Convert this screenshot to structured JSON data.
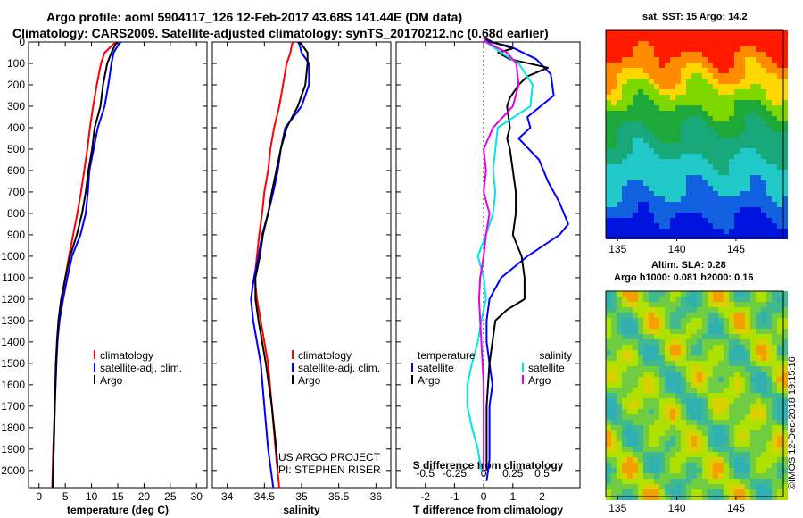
{
  "titles": {
    "line1": "Argo profile: aoml 5904117_126 12-Feb-2017 43.68S 141.44E (DM data)",
    "line2": "Climatology: CARS2009. Satellite-adjusted climatology: synTS_20170212.nc (0.68d earlier)"
  },
  "colors": {
    "climatology": "#ff0000",
    "satellite": "#0000ff",
    "argo": "#000000",
    "sat_salinity": "#00e5e5",
    "argo_salinity_diff": "#e600e6"
  },
  "credits": {
    "line1": "US ARGO PROJECT",
    "line2": "PI: STEPHEN RISER",
    "watermark": "©IMOS 12-Dec-2018 19:15:16"
  },
  "map_top": {
    "title": "sat. SST: 15 Argo: 14.2"
  },
  "map_bottom": {
    "title1": "Altim. SLA: 0.28",
    "title2": "Argo h1000: 0.081 h2000: 0.16"
  },
  "chart_data": [
    {
      "type": "line",
      "xlabel": "temperature (deg C)",
      "ylabel": "",
      "xlim": [
        -2,
        32
      ],
      "ylim": [
        2080,
        0
      ],
      "xticks": [
        "0",
        "5",
        "10",
        "15",
        "20",
        "25",
        "30"
      ],
      "yticks": [
        "0",
        "100",
        "200",
        "300",
        "400",
        "500",
        "600",
        "700",
        "800",
        "900",
        "1000",
        "1100",
        "1200",
        "1300",
        "1400",
        "1500",
        "1600",
        "1700",
        "1800",
        "1900",
        "2000"
      ],
      "legend": [
        "climatology",
        "satellite-adj. clim.",
        "Argo"
      ],
      "series": [
        {
          "name": "climatology",
          "depth": [
            0,
            10,
            50,
            100,
            200,
            300,
            400,
            500,
            600,
            700,
            800,
            900,
            1000,
            1100,
            1200,
            1300,
            1400,
            1500,
            1700,
            1900,
            2080
          ],
          "values": [
            14.5,
            14.2,
            12.5,
            11.8,
            11.0,
            10.3,
            9.7,
            9.2,
            8.6,
            8.0,
            7.3,
            6.5,
            5.7,
            5.0,
            4.4,
            3.8,
            3.5,
            3.3,
            3.0,
            2.7,
            2.5
          ]
        },
        {
          "name": "satellite-adj. clim.",
          "depth": [
            0,
            10,
            50,
            100,
            200,
            300,
            400,
            500,
            600,
            700,
            800,
            900,
            1000,
            1100,
            1200,
            1300,
            1400,
            1500,
            1700,
            1900,
            2080
          ],
          "values": [
            15.6,
            15.2,
            14.2,
            13.8,
            13.2,
            12.5,
            11.2,
            10.4,
            9.6,
            9.3,
            8.9,
            7.9,
            6.3,
            5.4,
            4.6,
            3.9,
            3.5,
            3.3,
            3.0,
            2.8,
            2.6
          ]
        },
        {
          "name": "Argo",
          "depth": [
            0,
            10,
            50,
            100,
            200,
            300,
            400,
            500,
            600,
            700,
            800,
            900,
            1000,
            1100,
            1200,
            1300,
            1400,
            1500,
            1700,
            1900,
            2080
          ],
          "values": [
            15.0,
            14.6,
            13.8,
            13.0,
            12.2,
            11.7,
            10.6,
            10.1,
            9.4,
            8.9,
            8.2,
            7.2,
            5.9,
            5.0,
            4.2,
            3.7,
            3.4,
            3.2,
            3.0,
            2.8,
            2.6
          ]
        }
      ]
    },
    {
      "type": "line",
      "xlabel": "salinity",
      "xlim": [
        33.8,
        36.2
      ],
      "ylim": [
        2080,
        0
      ],
      "xticks": [
        "34",
        "34.5",
        "35",
        "35.5",
        "36"
      ],
      "legend": [
        "climatology",
        "satellite-adj. clim.",
        "Argo"
      ],
      "series": [
        {
          "name": "climatology",
          "depth": [
            0,
            10,
            50,
            100,
            200,
            300,
            400,
            500,
            600,
            700,
            800,
            900,
            1000,
            1100,
            1200,
            1300,
            1400,
            1500,
            1700,
            1900,
            2080
          ],
          "values": [
            34.9,
            34.87,
            34.85,
            34.8,
            34.75,
            34.7,
            34.63,
            34.58,
            34.55,
            34.5,
            34.47,
            34.43,
            34.4,
            34.37,
            34.4,
            34.45,
            34.5,
            34.55,
            34.6,
            34.65,
            34.7
          ]
        },
        {
          "name": "satellite-adj. clim.",
          "depth": [
            0,
            10,
            50,
            100,
            200,
            300,
            400,
            500,
            600,
            700,
            800,
            900,
            1000,
            1100,
            1200,
            1300,
            1400,
            1500,
            1700,
            1900,
            2080
          ],
          "values": [
            34.95,
            34.97,
            35.0,
            35.1,
            35.1,
            35.0,
            34.78,
            34.72,
            34.68,
            34.62,
            34.55,
            34.47,
            34.42,
            34.36,
            34.32,
            34.35,
            34.4,
            34.45,
            34.5,
            34.55,
            34.62
          ]
        },
        {
          "name": "Argo",
          "depth": [
            0,
            10,
            50,
            100,
            200,
            300,
            400,
            500,
            600,
            700,
            800,
            900,
            1000,
            1100,
            1200,
            1300,
            1400,
            1500,
            1700,
            1900,
            1990
          ],
          "values": [
            34.95,
            35.0,
            35.08,
            35.08,
            35.05,
            34.95,
            34.8,
            34.72,
            34.66,
            34.6,
            34.55,
            34.48,
            34.44,
            34.38,
            34.38,
            34.42,
            34.47,
            34.52,
            34.6,
            34.66,
            34.68
          ]
        }
      ]
    },
    {
      "type": "line",
      "xlabel": "T difference from climatology",
      "xlabel2": "S difference from climatology",
      "xlim": [
        -3,
        3.3
      ],
      "ylim": [
        2080,
        0
      ],
      "xticks": [
        "-2",
        "-1",
        "0",
        "1",
        "2"
      ],
      "xticks_salinity": [
        "-0.5",
        "-0.25",
        "0",
        "0.25",
        "0.5"
      ],
      "legend_temperature": {
        "header": "temperature",
        "items": [
          "satellite",
          "Argo"
        ]
      },
      "legend_salinity": {
        "header": "salinity",
        "items": [
          "satellite",
          "Argo"
        ]
      },
      "series": [
        {
          "name": "satellite",
          "depth": [
            -20,
            0,
            20,
            80,
            150,
            250,
            350,
            400,
            450,
            550,
            650,
            750,
            850,
            900,
            1000,
            1100,
            1200,
            1300,
            1400,
            1500,
            1600,
            1700,
            1800,
            1950,
            2050
          ],
          "values": [
            0,
            0.2,
            0.9,
            1.8,
            2.3,
            2.4,
            1.5,
            1.6,
            1.2,
            1.9,
            2.2,
            2.6,
            2.9,
            2.6,
            1.5,
            0.6,
            0.2,
            0.1,
            0.1,
            0.2,
            0.3,
            0.2,
            0.2,
            0.2,
            0.1
          ]
        },
        {
          "name": "Argo",
          "depth": [
            -20,
            0,
            30,
            50,
            80,
            120,
            160,
            200,
            260,
            300,
            400,
            450,
            500,
            600,
            700,
            800,
            900,
            1000,
            1100,
            1200,
            1250,
            1300,
            1400,
            1500,
            1700,
            1900,
            2000
          ],
          "values": [
            0,
            0.3,
            1.0,
            0.5,
            0.9,
            2.2,
            1.5,
            1.2,
            0.9,
            0.8,
            0.9,
            0.8,
            0.9,
            1.0,
            1.1,
            1.1,
            1.0,
            1.3,
            1.4,
            1.4,
            0.8,
            0.4,
            0.3,
            0.2,
            0.1,
            0.1,
            0.1
          ]
        },
        {
          "name": "salinity satellite",
          "depth": [
            -20,
            0,
            50,
            100,
            200,
            300,
            400,
            500,
            600,
            700,
            800,
            900,
            1000,
            1100,
            1200,
            1300,
            1400,
            1500,
            1600,
            1700,
            1800,
            1900,
            2000
          ],
          "values": [
            0,
            0.02,
            0.15,
            0.3,
            0.42,
            0.4,
            0.12,
            0.1,
            0.08,
            0.1,
            0.08,
            0.02,
            -0.05,
            0.0,
            0.02,
            -0.02,
            -0.05,
            -0.1,
            -0.14,
            -0.14,
            -0.1,
            -0.05,
            -0.02
          ]
        },
        {
          "name": "Argo",
          "depth": [
            -20,
            0,
            50,
            100,
            200,
            300,
            400,
            500,
            600,
            700,
            800,
            900,
            1000,
            1100,
            1200,
            1300,
            1400,
            1500,
            1600,
            1700,
            1800,
            1900,
            2000
          ],
          "values": [
            0,
            0.02,
            0.2,
            0.28,
            0.3,
            0.25,
            0.08,
            0.0,
            0.02,
            0.0,
            0.05,
            0.02,
            0.0,
            -0.03,
            -0.04,
            -0.03,
            -0.02,
            -0.01,
            0.0,
            0.0,
            0.0,
            0.0,
            0.0
          ]
        }
      ]
    }
  ]
}
